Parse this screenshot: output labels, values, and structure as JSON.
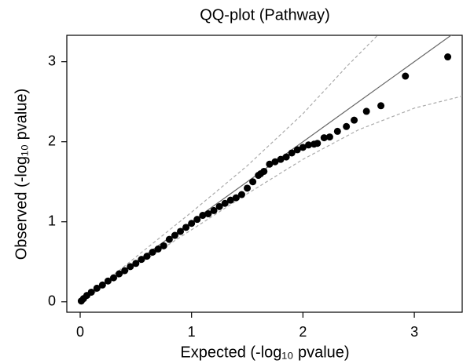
{
  "chart_data": {
    "type": "scatter",
    "title": "QQ-plot (Pathway)",
    "x_label": "Expected (-log₁₀ pvalue)",
    "y_label": "Observed (-log₁₀ pvalue)",
    "xlim": [
      -0.12,
      3.43
    ],
    "ylim": [
      -0.13,
      3.33
    ],
    "xticks": [
      0,
      1,
      2,
      3
    ],
    "yticks": [
      0,
      1,
      2,
      3
    ],
    "points": {
      "color": "#000000",
      "x": [
        0.01,
        0.03,
        0.06,
        0.1,
        0.15,
        0.2,
        0.25,
        0.3,
        0.35,
        0.4,
        0.45,
        0.5,
        0.55,
        0.6,
        0.65,
        0.7,
        0.75,
        0.8,
        0.85,
        0.9,
        0.95,
        1.0,
        1.05,
        1.1,
        1.15,
        1.2,
        1.25,
        1.3,
        1.35,
        1.4,
        1.45,
        1.5,
        1.55,
        1.6,
        1.62,
        1.65,
        1.7,
        1.75,
        1.8,
        1.85,
        1.9,
        1.95,
        2.0,
        2.05,
        2.1,
        2.13,
        2.19,
        2.24,
        2.31,
        2.39,
        2.46,
        2.57,
        2.7,
        2.92,
        3.3
      ],
      "values": [
        0.01,
        0.04,
        0.08,
        0.12,
        0.17,
        0.21,
        0.26,
        0.3,
        0.35,
        0.39,
        0.44,
        0.48,
        0.53,
        0.57,
        0.62,
        0.66,
        0.7,
        0.78,
        0.83,
        0.88,
        0.93,
        0.98,
        1.03,
        1.08,
        1.1,
        1.14,
        1.19,
        1.23,
        1.27,
        1.3,
        1.34,
        1.42,
        1.5,
        1.58,
        1.6,
        1.63,
        1.72,
        1.75,
        1.78,
        1.81,
        1.86,
        1.9,
        1.93,
        1.96,
        1.97,
        1.98,
        2.05,
        2.06,
        2.13,
        2.19,
        2.27,
        2.38,
        2.45,
        2.82,
        3.06
      ]
    },
    "reference_line": {
      "color": "#666666",
      "x": [
        0,
        3.43
      ],
      "values": [
        0,
        3.43
      ]
    },
    "upper_band": {
      "color": "#aaaaaa",
      "x": [
        0,
        0.5,
        1,
        1.5,
        2,
        2.4,
        2.67
      ],
      "values": [
        0,
        0.56,
        1.12,
        1.7,
        2.35,
        2.95,
        3.33
      ]
    },
    "lower_band": {
      "color": "#aaaaaa",
      "x": [
        0,
        0.5,
        1,
        1.5,
        2,
        2.5,
        3,
        3.43
      ],
      "values": [
        0,
        0.45,
        0.9,
        1.35,
        1.78,
        2.15,
        2.42,
        2.57
      ]
    }
  }
}
